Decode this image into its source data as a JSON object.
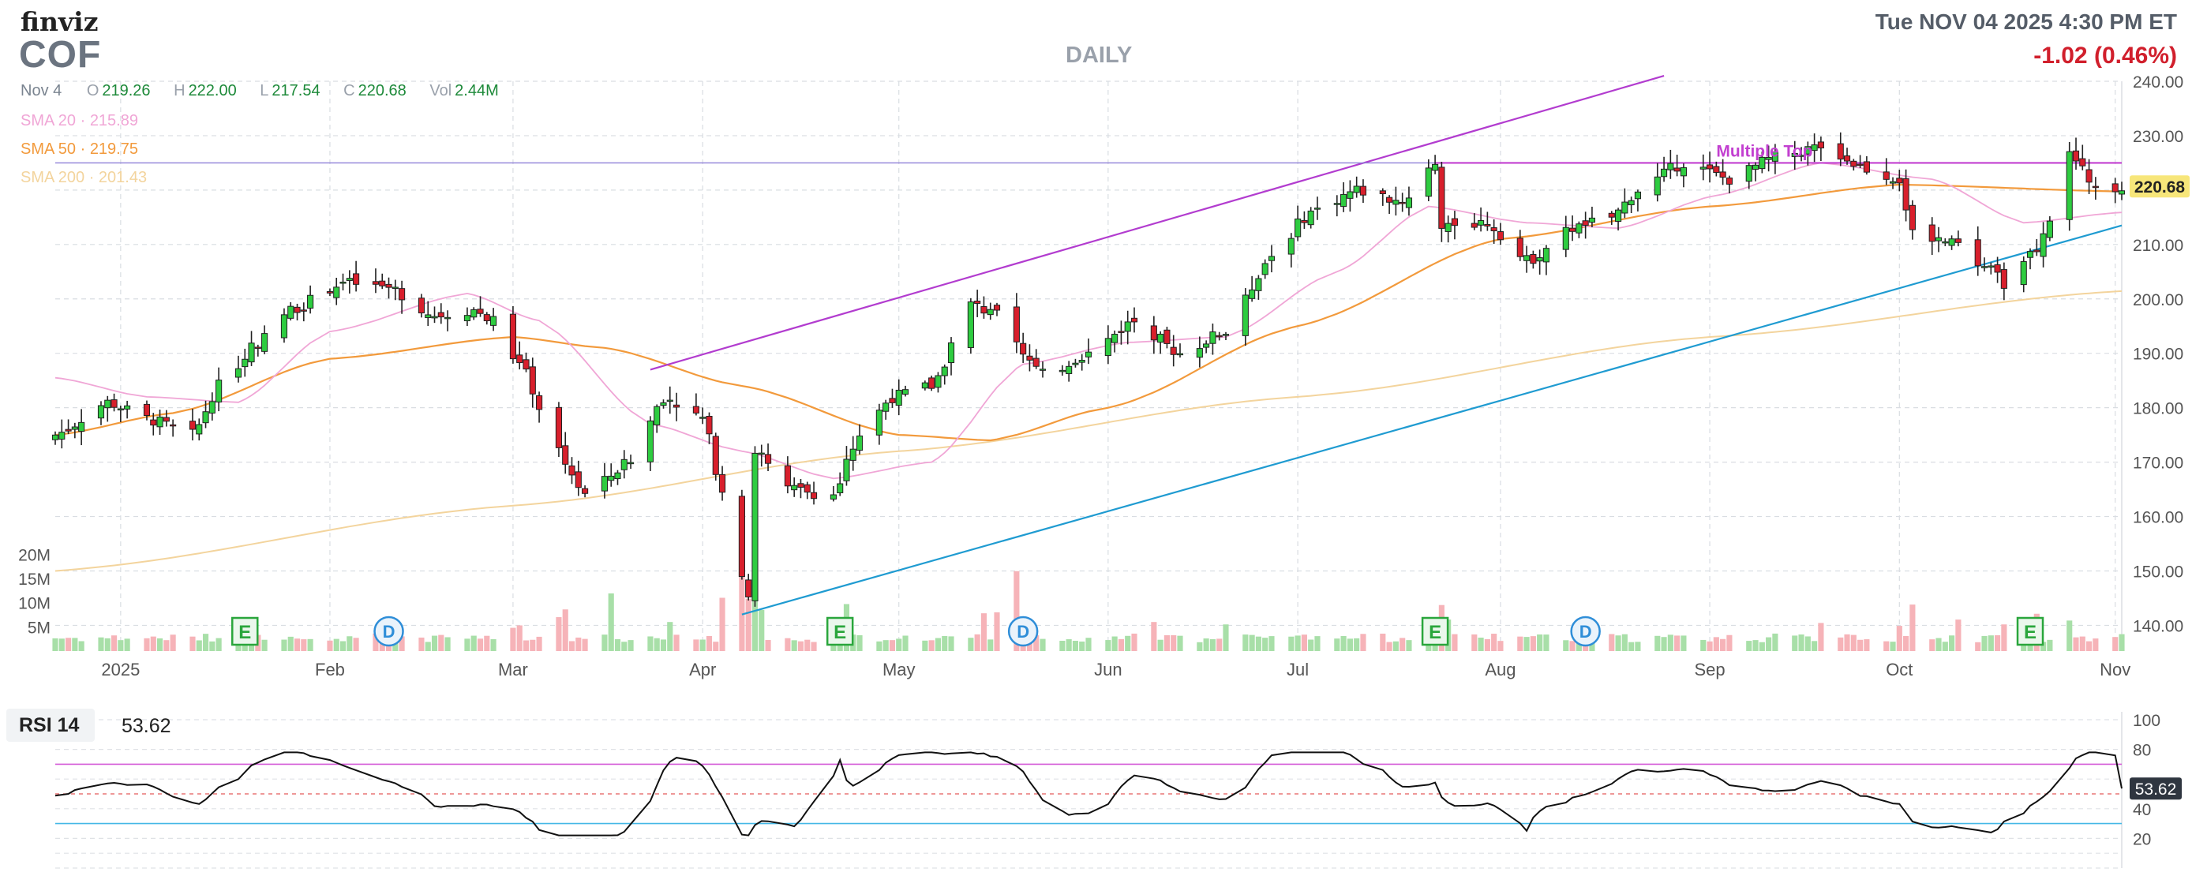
{
  "header": {
    "logo": "finviz",
    "ticker": "COF",
    "timeframe": "DAILY",
    "datetime": "Tue NOV 04 2025 4:30 PM ET",
    "change": "-1.02 (0.46%)"
  },
  "ohlc": {
    "date": "Nov 4",
    "open_label": "O",
    "open": "219.26",
    "high_label": "H",
    "high": "222.00",
    "low_label": "L",
    "low": "217.54",
    "close_label": "C",
    "close": "220.68",
    "vol_label": "Vol",
    "vol": "2.44M"
  },
  "sma_legend": {
    "sma20": "SMA 20 · 215.89",
    "sma50": "SMA 50 · 219.75",
    "sma200": "SMA 200 · 201.43"
  },
  "annotation": "Multiple Top",
  "last_price_tag": "220.68",
  "rsi": {
    "label": "RSI 14",
    "value": "53.62"
  },
  "colors": {
    "up": "#2ecc40",
    "down": "#d81f2c",
    "vol_up": "#a8dfa8",
    "vol_down": "#f6b3b8",
    "sma20": "#f0a6d6",
    "sma50": "#f29a3c",
    "sma200": "#f3d49d",
    "channel_top": "#b23ccf",
    "trend_bottom": "#1f9bd1",
    "resistance": "#c23fd0",
    "rsi_line": "#111111",
    "rsi_upper": "#d45ad8",
    "rsi_lower": "#44b8e6",
    "earnings": "#2aa63c",
    "dividend": "#2f8ed8"
  },
  "chart_data": [
    {
      "type": "candlestick",
      "title": "COF",
      "xlim": [
        "2024-12-23",
        "2025-11-04"
      ],
      "ylim": [
        136,
        240
      ],
      "y_ticks": [
        140,
        150,
        160,
        170,
        180,
        190,
        200,
        210,
        220,
        230,
        240
      ],
      "y_tick_labels": [
        "140.00",
        "150.00",
        "160.00",
        "170.00",
        "180.00",
        "190.00",
        "200.00",
        "210.00",
        "220.00",
        "230.00",
        "240.00"
      ],
      "x_ticks": [
        {
          "date": "2025-01-02",
          "label": "2025"
        },
        {
          "date": "2025-02-03",
          "label": "Feb"
        },
        {
          "date": "2025-03-03",
          "label": "Mar"
        },
        {
          "date": "2025-04-01",
          "label": "Apr"
        },
        {
          "date": "2025-05-01",
          "label": "May"
        },
        {
          "date": "2025-06-02",
          "label": "Jun"
        },
        {
          "date": "2025-07-01",
          "label": "Jul"
        },
        {
          "date": "2025-08-01",
          "label": "Aug"
        },
        {
          "date": "2025-09-02",
          "label": "Sep"
        },
        {
          "date": "2025-10-01",
          "label": "Oct"
        },
        {
          "date": "2025-11-03",
          "label": "Nov"
        }
      ],
      "close_anchors": [
        [
          "2024-12-23",
          175
        ],
        [
          "2024-12-31",
          181
        ],
        [
          "2025-01-06",
          178
        ],
        [
          "2025-01-13",
          175
        ],
        [
          "2025-01-17",
          184
        ],
        [
          "2025-01-23",
          192
        ],
        [
          "2025-01-28",
          198
        ],
        [
          "2025-02-05",
          203
        ],
        [
          "2025-02-12",
          202
        ],
        [
          "2025-02-19",
          197
        ],
        [
          "2025-02-25",
          198
        ],
        [
          "2025-02-28",
          196
        ],
        [
          "2025-03-04",
          188
        ],
        [
          "2025-03-10",
          172
        ],
        [
          "2025-03-14",
          164
        ],
        [
          "2025-03-21",
          170
        ],
        [
          "2025-03-26",
          182
        ],
        [
          "2025-04-01",
          178
        ],
        [
          "2025-04-04",
          165
        ],
        [
          "2025-04-07",
          148
        ],
        [
          "2025-04-08",
          146
        ],
        [
          "2025-04-09",
          172
        ],
        [
          "2025-04-14",
          165
        ],
        [
          "2025-04-21",
          164
        ],
        [
          "2025-04-25",
          175
        ],
        [
          "2025-04-30",
          182
        ],
        [
          "2025-05-06",
          184
        ],
        [
          "2025-05-12",
          199
        ],
        [
          "2025-05-16",
          197
        ],
        [
          "2025-05-23",
          186
        ],
        [
          "2025-05-30",
          190
        ],
        [
          "2025-06-06",
          196
        ],
        [
          "2025-06-13",
          190
        ],
        [
          "2025-06-20",
          194
        ],
        [
          "2025-06-27",
          208
        ],
        [
          "2025-07-03",
          216
        ],
        [
          "2025-07-10",
          220
        ],
        [
          "2025-07-17",
          218
        ],
        [
          "2025-07-22",
          225
        ],
        [
          "2025-07-23",
          214
        ],
        [
          "2025-07-30",
          214
        ],
        [
          "2025-08-05",
          207
        ],
        [
          "2025-08-12",
          213
        ],
        [
          "2025-08-18",
          215
        ],
        [
          "2025-08-22",
          220
        ],
        [
          "2025-08-29",
          225
        ],
        [
          "2025-09-05",
          222
        ],
        [
          "2025-09-12",
          226
        ],
        [
          "2025-09-19",
          228
        ],
        [
          "2025-09-26",
          224
        ],
        [
          "2025-10-01",
          222
        ],
        [
          "2025-10-03",
          212
        ],
        [
          "2025-10-10",
          210
        ],
        [
          "2025-10-14",
          206
        ],
        [
          "2025-10-17",
          203
        ],
        [
          "2025-10-22",
          209
        ],
        [
          "2025-10-24",
          214
        ],
        [
          "2025-10-27",
          226
        ],
        [
          "2025-10-31",
          221
        ],
        [
          "2025-11-04",
          220.68
        ]
      ],
      "sma20_anchors": [
        [
          "2024-12-23",
          185.5
        ],
        [
          "2025-01-06",
          182
        ],
        [
          "2025-01-20",
          181
        ],
        [
          "2025-02-03",
          194
        ],
        [
          "2025-02-24",
          201
        ],
        [
          "2025-03-07",
          196
        ],
        [
          "2025-03-24",
          177
        ],
        [
          "2025-04-07",
          172
        ],
        [
          "2025-04-21",
          167
        ],
        [
          "2025-05-06",
          170
        ],
        [
          "2025-05-20",
          188
        ],
        [
          "2025-06-05",
          192
        ],
        [
          "2025-06-20",
          193
        ],
        [
          "2025-07-07",
          205
        ],
        [
          "2025-07-21",
          217
        ],
        [
          "2025-08-05",
          214
        ],
        [
          "2025-08-19",
          213
        ],
        [
          "2025-09-03",
          219
        ],
        [
          "2025-09-19",
          225
        ],
        [
          "2025-10-06",
          222
        ],
        [
          "2025-10-20",
          214
        ],
        [
          "2025-11-04",
          215.89
        ]
      ],
      "sma50_anchors": [
        [
          "2024-12-23",
          175
        ],
        [
          "2025-01-10",
          179
        ],
        [
          "2025-02-03",
          189
        ],
        [
          "2025-03-03",
          193
        ],
        [
          "2025-03-17",
          191
        ],
        [
          "2025-04-07",
          184
        ],
        [
          "2025-05-01",
          175
        ],
        [
          "2025-05-15",
          174
        ],
        [
          "2025-06-02",
          180
        ],
        [
          "2025-07-01",
          195
        ],
        [
          "2025-08-01",
          211
        ],
        [
          "2025-09-02",
          217
        ],
        [
          "2025-10-01",
          221
        ],
        [
          "2025-11-04",
          219.75
        ]
      ],
      "sma200_anchors": [
        [
          "2024-12-23",
          150
        ],
        [
          "2025-03-03",
          162
        ],
        [
          "2025-05-01",
          172
        ],
        [
          "2025-07-01",
          182
        ],
        [
          "2025-09-02",
          193
        ],
        [
          "2025-11-04",
          201.43
        ]
      ],
      "trendlines": [
        {
          "name": "upper-channel",
          "from": [
            "2025-03-24",
            187
          ],
          "to": [
            "2025-08-26",
            241
          ]
        },
        {
          "name": "lower-trend",
          "from": [
            "2025-04-07",
            142
          ],
          "to": [
            "2025-11-04",
            213.5
          ]
        },
        {
          "name": "horizontal-level",
          "from": [
            "2024-12-23",
            225
          ],
          "to": [
            "2025-11-04",
            225
          ]
        },
        {
          "name": "multiple-top",
          "from": [
            "2025-07-22",
            225
          ],
          "to": [
            "2025-11-04",
            225
          ]
        }
      ],
      "events": [
        {
          "type": "E",
          "date": "2025-01-21"
        },
        {
          "type": "D",
          "date": "2025-02-12"
        },
        {
          "type": "E",
          "date": "2025-04-22"
        },
        {
          "type": "D",
          "date": "2025-05-20"
        },
        {
          "type": "E",
          "date": "2025-07-22"
        },
        {
          "type": "D",
          "date": "2025-08-14"
        },
        {
          "type": "E",
          "date": "2025-10-21"
        }
      ]
    },
    {
      "type": "bar",
      "title": "Volume",
      "ylim": [
        0,
        22
      ],
      "y_ticks": [
        5,
        10,
        15,
        20
      ],
      "y_tick_labels": [
        "5M",
        "10M",
        "15M",
        "20M"
      ],
      "typical_volume": 2.6,
      "spikes": [
        [
          "2025-01-21",
          5.5
        ],
        [
          "2025-01-22",
          5.2
        ],
        [
          "2025-02-12",
          4.6
        ],
        [
          "2025-03-03",
          4.8
        ],
        [
          "2025-03-04",
          5.3
        ],
        [
          "2025-03-10",
          7.0
        ],
        [
          "2025-03-11",
          8.6
        ],
        [
          "2025-03-18",
          11.9
        ],
        [
          "2025-03-27",
          6.0
        ],
        [
          "2025-04-04",
          11.0
        ],
        [
          "2025-04-07",
          15.5
        ],
        [
          "2025-04-08",
          10.8
        ],
        [
          "2025-04-09",
          12.5
        ],
        [
          "2025-04-10",
          8.5
        ],
        [
          "2025-04-22",
          6.5
        ],
        [
          "2025-04-23",
          9.7
        ],
        [
          "2025-05-14",
          7.8
        ],
        [
          "2025-05-16",
          8.0
        ],
        [
          "2025-05-19",
          16.5
        ],
        [
          "2025-06-09",
          6.0
        ],
        [
          "2025-06-20",
          5.5
        ],
        [
          "2025-07-22",
          5.8
        ],
        [
          "2025-07-23",
          9.5
        ],
        [
          "2025-07-24",
          6.5
        ],
        [
          "2025-08-15",
          5.5
        ],
        [
          "2025-09-19",
          5.8
        ],
        [
          "2025-10-01",
          5.2
        ],
        [
          "2025-10-03",
          9.6
        ],
        [
          "2025-10-10",
          6.5
        ],
        [
          "2025-10-17",
          5.5
        ],
        [
          "2025-10-21",
          5.5
        ],
        [
          "2025-10-22",
          7.7
        ],
        [
          "2025-10-27",
          6.3
        ]
      ]
    },
    {
      "type": "line",
      "title": "RSI 14",
      "ylim": [
        0,
        100
      ],
      "y_ticks": [
        20,
        40,
        60,
        80,
        100
      ],
      "y_tick_labels": [
        "20",
        "40",
        "60",
        "80",
        "100"
      ],
      "overbought": 70,
      "oversold": 30,
      "last": 53.62
    }
  ]
}
